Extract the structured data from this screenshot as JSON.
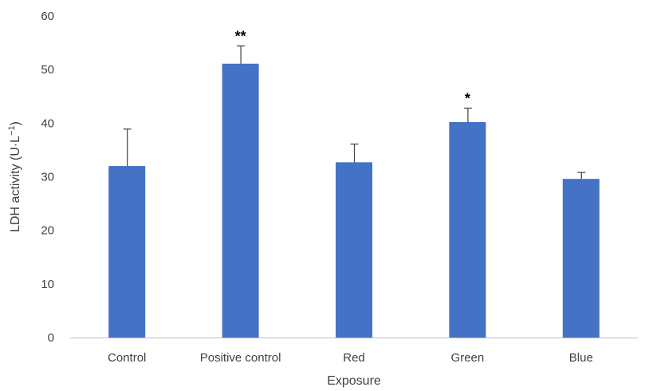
{
  "chart_data": {
    "type": "bar",
    "categories": [
      "Control",
      "Positive control",
      "Red",
      "Green",
      "Blue"
    ],
    "values": [
      32.0,
      51.1,
      32.7,
      40.2,
      29.6
    ],
    "errors": [
      6.9,
      3.3,
      3.4,
      2.6,
      1.2
    ],
    "significance": [
      "",
      "**",
      "",
      "*",
      ""
    ],
    "xlabel": "Exposure",
    "ylabel": "LDH activity (U·L",
    "ylabel_sup": "−1",
    "ylabel_close": ")",
    "ylim": [
      0,
      60
    ],
    "yticks": [
      0,
      10,
      20,
      30,
      40,
      50,
      60
    ],
    "grid": false,
    "colors": {
      "bar": "#4472C4",
      "error_bar": "#404040",
      "axis": "#bfbfbf"
    }
  }
}
